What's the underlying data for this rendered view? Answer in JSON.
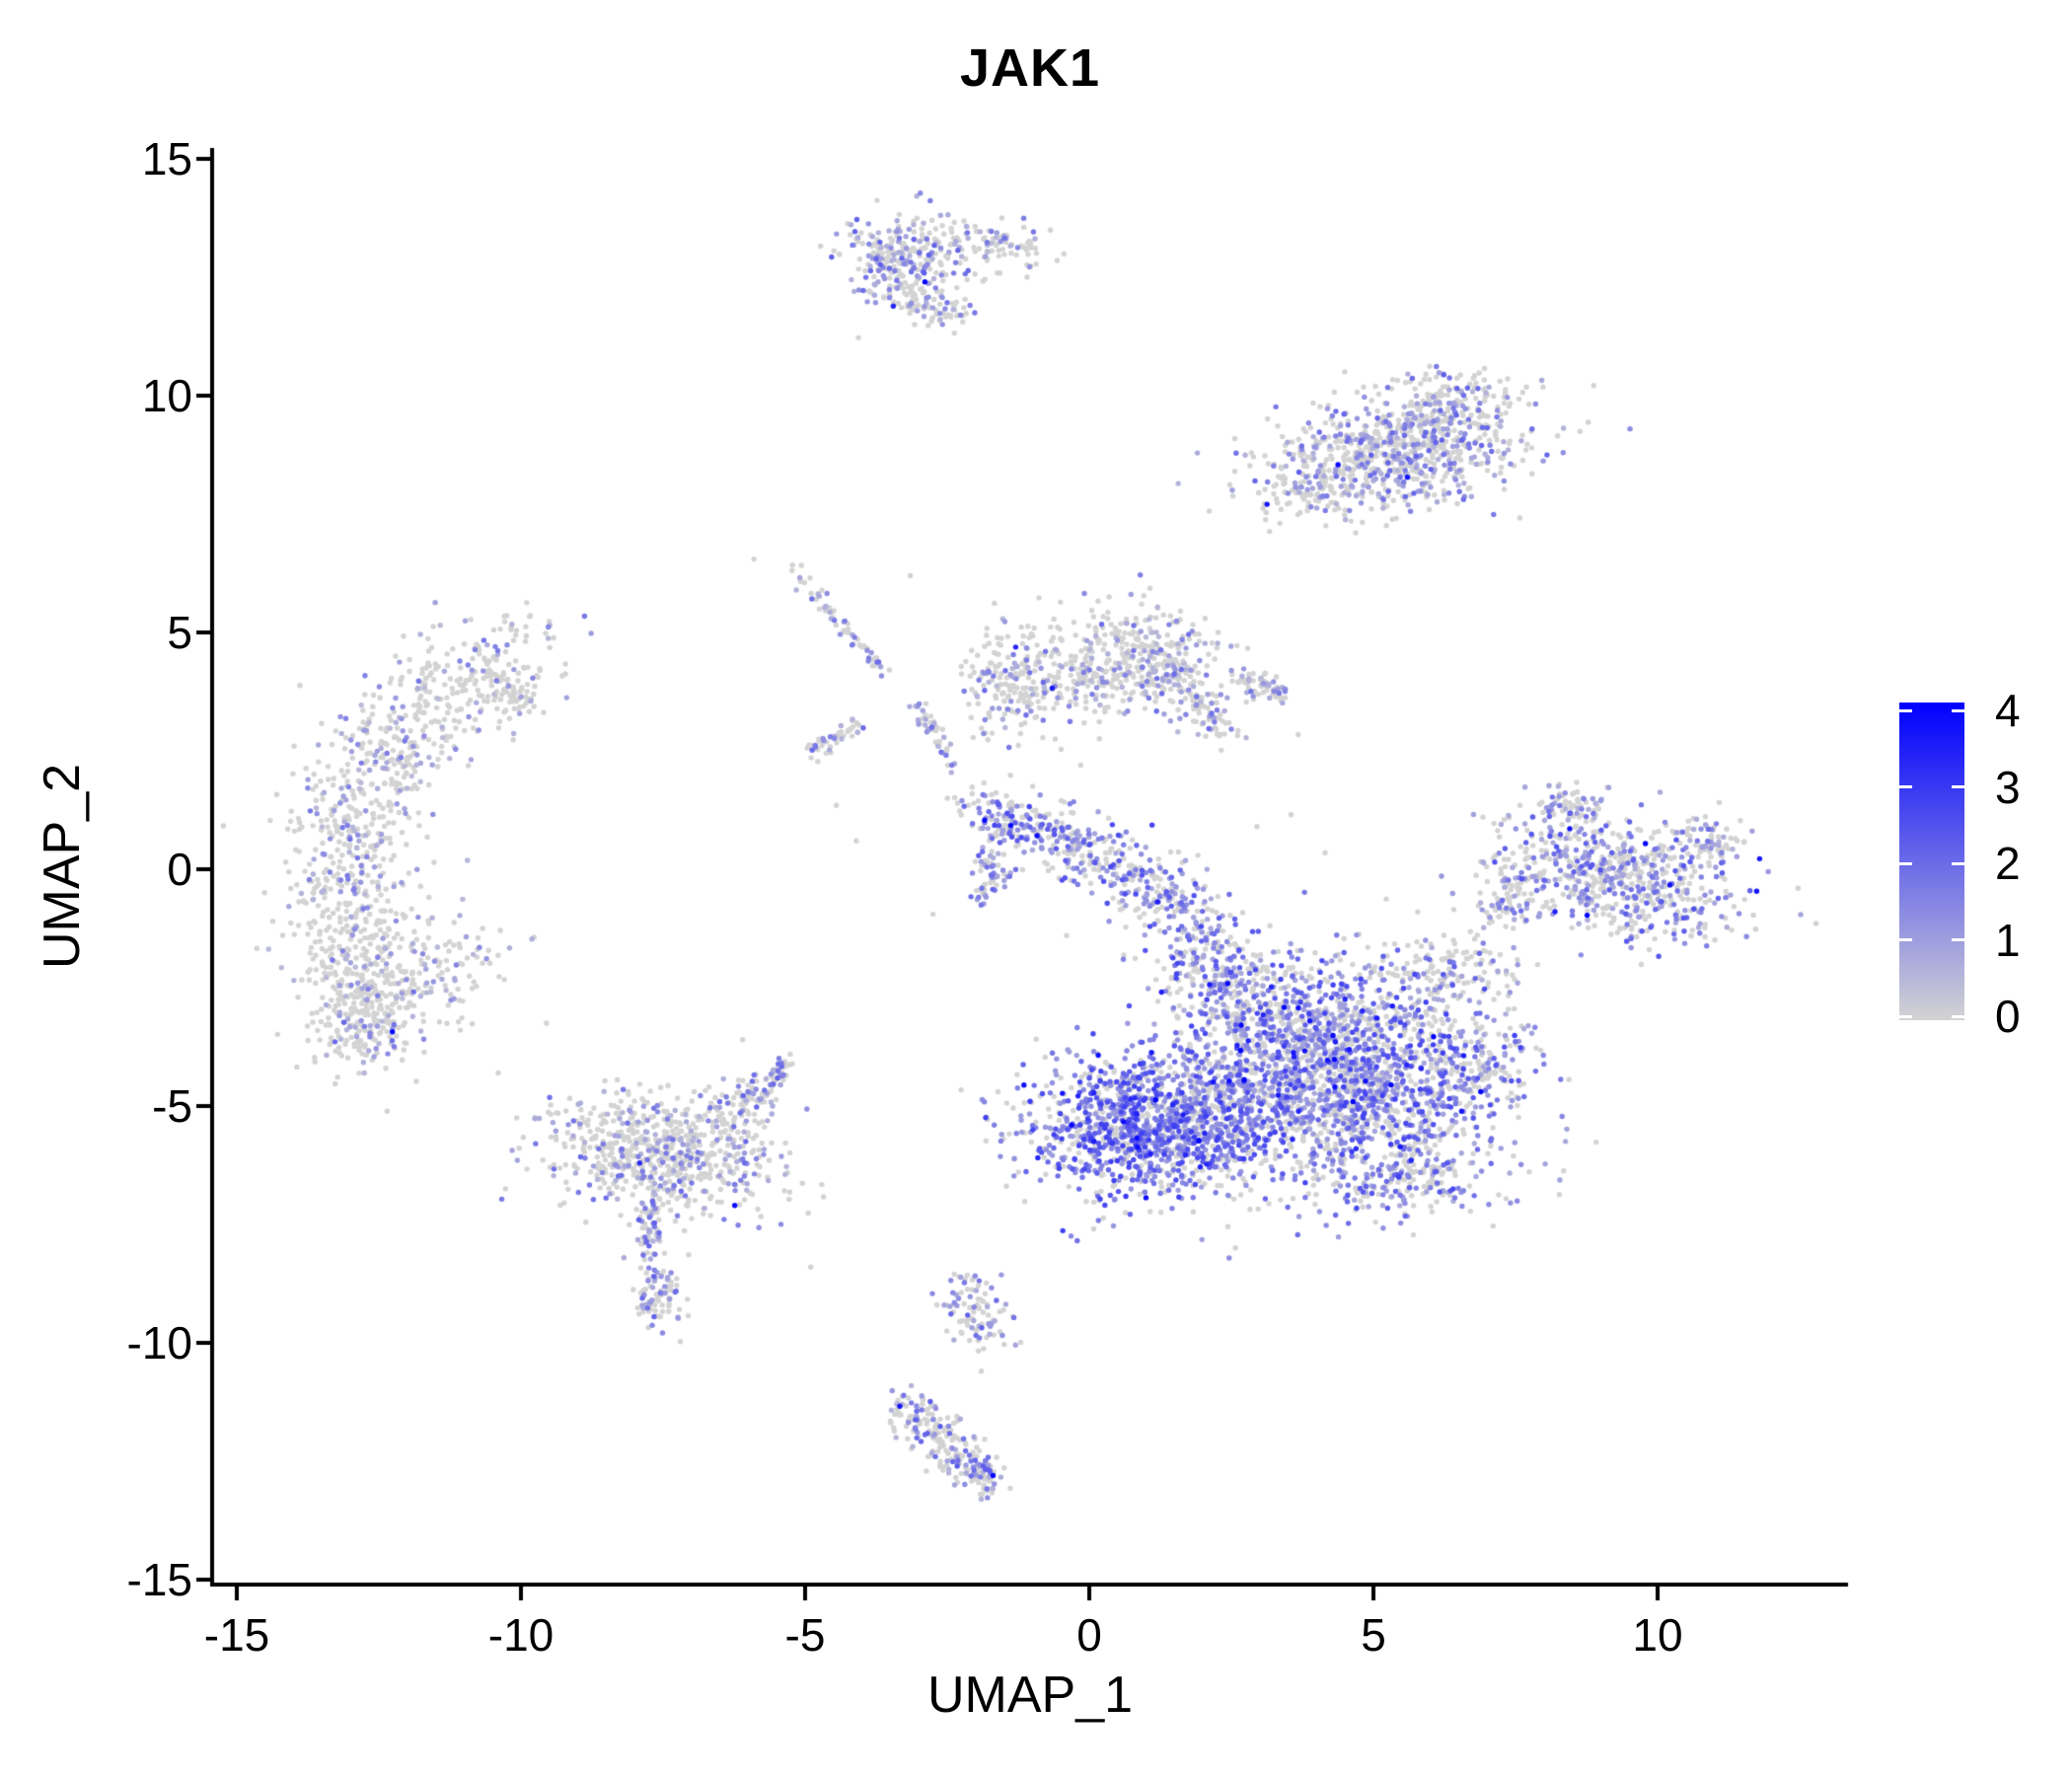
{
  "title": "JAK1",
  "axes": {
    "x": {
      "label": "UMAP_1",
      "ticks": [
        -15,
        -10,
        -5,
        0,
        5,
        10
      ],
      "range": [
        -15.4,
        13.4
      ]
    },
    "y": {
      "label": "UMAP_2",
      "ticks": [
        15,
        10,
        5,
        0,
        -5,
        -10,
        -15
      ],
      "range": [
        -15.2,
        15.2
      ]
    }
  },
  "colorbar": {
    "labels": [
      4,
      3,
      2,
      1,
      0
    ],
    "min_value": 0,
    "max_value": 4,
    "low_color": "#d3d3d3",
    "high_color": "#0000ff"
  },
  "chart_data": {
    "type": "scatter",
    "title": "JAK1",
    "xlabel": "UMAP_1",
    "ylabel": "UMAP_2",
    "xlim": [
      -15.4,
      13.4
    ],
    "ylim": [
      -15.2,
      15.2
    ],
    "grid": false,
    "legend_position": "right",
    "point_radius_px": 2.7,
    "color_scale": {
      "low": "#d3d3d3",
      "high": "#0000ff",
      "domain": [
        0,
        4
      ]
    },
    "seed": 7,
    "clusters": [
      {
        "name": "top-blob",
        "type": "gauss",
        "cx": -3.25,
        "cy": 12.85,
        "sx": 0.6,
        "sy": 0.48,
        "rot": -8,
        "n": 300,
        "expr": {
          "p0": 0.6,
          "t1": 0.15,
          "t2": 0.55,
          "ph": 0.012
        }
      },
      {
        "name": "top-blob-tail",
        "type": "band",
        "path": [
          [
            -2.3,
            13.35
          ],
          [
            -1.5,
            13.2
          ],
          [
            -0.95,
            13.0
          ]
        ],
        "sigma": 0.22,
        "n": 80,
        "expr": {
          "p0": 0.68,
          "t1": 0.12,
          "t2": 0.45,
          "ph": 0
        }
      },
      {
        "name": "top-blob-hook",
        "type": "band",
        "path": [
          [
            -3.2,
            12.0
          ],
          [
            -2.6,
            11.7
          ],
          [
            -2.05,
            11.9
          ]
        ],
        "sigma": 0.16,
        "n": 60,
        "expr": {
          "p0": 0.62,
          "t1": 0.15,
          "t2": 0.5,
          "ph": 0
        }
      },
      {
        "name": "top-right-main",
        "type": "gauss",
        "cx": 5.45,
        "cy": 8.85,
        "sx": 1.2,
        "sy": 0.6,
        "rot": 14,
        "n": 800,
        "expr": {
          "p0": 0.63,
          "t1": 0.15,
          "t2": 0.55,
          "ph": 0.01
        }
      },
      {
        "name": "top-right-crest",
        "type": "gauss",
        "cx": 6.35,
        "cy": 9.9,
        "sx": 0.5,
        "sy": 0.3,
        "rot": 10,
        "n": 90,
        "expr": {
          "p0": 0.63,
          "t1": 0.15,
          "t2": 0.55,
          "ph": 0.01
        }
      },
      {
        "name": "top-right-west-tip",
        "type": "gauss",
        "cx": 3.9,
        "cy": 8.1,
        "sx": 0.35,
        "sy": 0.3,
        "rot": 0,
        "n": 70,
        "expr": {
          "p0": 0.66,
          "t1": 0.15,
          "t2": 0.5,
          "ph": 0
        }
      },
      {
        "name": "left-crescent",
        "type": "band",
        "path": [
          [
            -9.85,
            4.65
          ],
          [
            -10.8,
            4.15
          ],
          [
            -11.85,
            3.3
          ],
          [
            -12.55,
            2.2
          ],
          [
            -12.95,
            1.0
          ],
          [
            -13.1,
            -0.2
          ],
          [
            -13.0,
            -1.5
          ],
          [
            -12.75,
            -2.8
          ],
          [
            -12.4,
            -3.7
          ]
        ],
        "sigma": 0.55,
        "n": 950,
        "expr": {
          "p0": 0.78,
          "t1": 0.12,
          "t2": 0.45,
          "ph": 0.006
        }
      },
      {
        "name": "left-crescent-bottom",
        "type": "gauss",
        "cx": -12.7,
        "cy": -2.9,
        "sx": 0.45,
        "sy": 0.75,
        "rot": 0,
        "n": 140,
        "expr": {
          "p0": 0.74,
          "t1": 0.14,
          "t2": 0.5,
          "ph": 0.008
        }
      },
      {
        "name": "left-crescent-inner",
        "type": "gauss",
        "cx": -11.4,
        "cy": -2.1,
        "sx": 0.6,
        "sy": 0.6,
        "rot": 0,
        "n": 110,
        "expr": {
          "p0": 0.8,
          "t1": 0.12,
          "t2": 0.4,
          "ph": 0
        }
      },
      {
        "name": "left-crescent-finger",
        "type": "band",
        "path": [
          [
            -10.4,
            3.9
          ],
          [
            -9.9,
            3.4
          ]
        ],
        "sigma": 0.2,
        "n": 50,
        "expr": {
          "p0": 0.76,
          "t1": 0.12,
          "t2": 0.45,
          "ph": 0
        }
      },
      {
        "name": "streak-upper-diagonal",
        "type": "band",
        "path": [
          [
            -5.3,
            6.5
          ],
          [
            -4.75,
            5.7
          ],
          [
            -4.1,
            4.8
          ],
          [
            -3.55,
            4.15
          ]
        ],
        "sigma": 0.07,
        "n": 60,
        "expr": {
          "p0": 0.55,
          "t1": 0.15,
          "t2": 0.5,
          "ph": 0
        }
      },
      {
        "name": "streak-lower-diagonal",
        "type": "band",
        "path": [
          [
            -4.95,
            2.45
          ],
          [
            -4.35,
            2.85
          ],
          [
            -3.95,
            3.1
          ]
        ],
        "sigma": 0.09,
        "n": 45,
        "expr": {
          "p0": 0.6,
          "t1": 0.15,
          "t2": 0.5,
          "ph": 0
        }
      },
      {
        "name": "streak-vertical",
        "type": "band",
        "path": [
          [
            -3.05,
            3.5
          ],
          [
            -2.7,
            2.8
          ],
          [
            -2.3,
            1.95
          ]
        ],
        "sigma": 0.09,
        "n": 42,
        "expr": {
          "p0": 0.6,
          "t1": 0.15,
          "t2": 0.5,
          "ph": 0
        }
      },
      {
        "name": "mid-left-lobe",
        "type": "gauss",
        "cx": -1.35,
        "cy": 3.95,
        "sx": 0.45,
        "sy": 0.55,
        "rot": 0,
        "n": 190,
        "expr": {
          "p0": 0.7,
          "t1": 0.12,
          "t2": 0.5,
          "ph": 0.005
        }
      },
      {
        "name": "mid-apex",
        "type": "gauss",
        "cx": 0.85,
        "cy": 4.35,
        "sx": 0.8,
        "sy": 0.6,
        "rot": -12,
        "n": 400,
        "expr": {
          "p0": 0.7,
          "t1": 0.12,
          "t2": 0.5,
          "ph": 0.005
        }
      },
      {
        "name": "mid-bridge",
        "type": "gauss",
        "cx": -0.2,
        "cy": 3.9,
        "sx": 0.3,
        "sy": 0.35,
        "rot": 0,
        "n": 60,
        "expr": {
          "p0": 0.75,
          "t1": 0.12,
          "t2": 0.45,
          "ph": 0
        }
      },
      {
        "name": "mid-down-arm",
        "type": "band",
        "path": [
          [
            1.7,
            3.95
          ],
          [
            2.35,
            2.9
          ]
        ],
        "sigma": 0.18,
        "n": 70,
        "expr": {
          "p0": 0.7,
          "t1": 0.12,
          "t2": 0.5,
          "ph": 0
        }
      },
      {
        "name": "mid-right-streak",
        "type": "band",
        "path": [
          [
            2.55,
            4.1
          ],
          [
            3.05,
            3.9
          ],
          [
            3.4,
            3.6
          ]
        ],
        "sigma": 0.11,
        "n": 55,
        "expr": {
          "p0": 0.72,
          "t1": 0.12,
          "t2": 0.5,
          "ph": 0
        }
      },
      {
        "name": "trail",
        "type": "band",
        "path": [
          [
            -2.05,
            1.35
          ],
          [
            -1.15,
            1.0
          ],
          [
            -0.1,
            0.45
          ],
          [
            0.9,
            -0.1
          ],
          [
            1.6,
            -0.85
          ],
          [
            2.0,
            -1.7
          ],
          [
            2.45,
            -2.55
          ]
        ],
        "sigma": [
          0.26,
          0.5
        ],
        "n": 600,
        "expr": {
          "p0": 0.42,
          "t1": 0.2,
          "t2": 0.68,
          "ph": 0.02
        }
      },
      {
        "name": "trail-spur",
        "type": "band",
        "path": [
          [
            -1.55,
            0.85
          ],
          [
            -1.85,
            0.1
          ],
          [
            -1.5,
            -0.1
          ],
          [
            -1.95,
            -0.6
          ]
        ],
        "sigma": 0.1,
        "n": 70,
        "expr": {
          "p0": 0.5,
          "t1": 0.18,
          "t2": 0.6,
          "ph": 0.01
        }
      },
      {
        "name": "central-left-lobe",
        "type": "gauss",
        "cx": 1.15,
        "cy": -5.4,
        "sx": 1.1,
        "sy": 0.75,
        "rot": 4,
        "n": 1350,
        "expr": {
          "p0": 0.33,
          "t1": 0.25,
          "t2": 0.72,
          "ph": 0.03
        }
      },
      {
        "name": "central-right-lobe",
        "type": "gauss",
        "cx": 4.55,
        "cy": -4.4,
        "sx": 1.3,
        "sy": 1.1,
        "rot": 0,
        "n": 1750,
        "expr": {
          "p0": 0.44,
          "t1": 0.2,
          "t2": 0.7,
          "ph": 0.025
        }
      },
      {
        "name": "central-bridge",
        "type": "gauss",
        "cx": 3.0,
        "cy": -3.0,
        "sx": 0.8,
        "sy": 0.65,
        "rot": -20,
        "n": 330,
        "expr": {
          "p0": 0.5,
          "t1": 0.18,
          "t2": 0.6,
          "ph": 0.015
        }
      },
      {
        "name": "central-upper-fringe",
        "type": "gauss",
        "cx": 6.3,
        "cy": -2.1,
        "sx": 0.65,
        "sy": 0.5,
        "rot": 0,
        "n": 140,
        "expr": {
          "p0": 0.68,
          "t1": 0.15,
          "t2": 0.55,
          "ph": 0
        }
      },
      {
        "name": "central-lower-fringe",
        "type": "gauss",
        "cx": 5.5,
        "cy": -6.4,
        "sx": 0.9,
        "sy": 0.42,
        "rot": 0,
        "n": 220,
        "expr": {
          "p0": 0.55,
          "t1": 0.18,
          "t2": 0.6,
          "ph": 0.01
        }
      },
      {
        "name": "central-right-tip",
        "type": "gauss",
        "cx": 6.9,
        "cy": -4.2,
        "sx": 0.5,
        "sy": 0.5,
        "rot": 0,
        "n": 120,
        "expr": {
          "p0": 0.5,
          "t1": 0.18,
          "t2": 0.6,
          "ph": 0.01
        }
      },
      {
        "name": "right-main",
        "type": "gauss",
        "cx": 9.3,
        "cy": -0.2,
        "sx": 1.1,
        "sy": 0.62,
        "rot": -16,
        "n": 650,
        "expr": {
          "p0": 0.55,
          "t1": 0.18,
          "t2": 0.62,
          "ph": 0.02
        }
      },
      {
        "name": "right-satellite",
        "type": "gauss",
        "cx": 8.5,
        "cy": 1.3,
        "sx": 0.3,
        "sy": 0.17,
        "rot": -20,
        "n": 55,
        "expr": {
          "p0": 0.6,
          "t1": 0.15,
          "t2": 0.5,
          "ph": 0
        }
      },
      {
        "name": "right-left-link",
        "type": "band",
        "path": [
          [
            7.0,
            -0.85
          ],
          [
            7.75,
            -0.45
          ]
        ],
        "sigma": 0.28,
        "n": 60,
        "expr": {
          "p0": 0.7,
          "t1": 0.15,
          "t2": 0.5,
          "ph": 0
        }
      },
      {
        "name": "right-east-tip",
        "type": "gauss",
        "cx": 10.9,
        "cy": 0.55,
        "sx": 0.35,
        "sy": 0.25,
        "rot": 25,
        "n": 70,
        "expr": {
          "p0": 0.6,
          "t1": 0.15,
          "t2": 0.55,
          "ph": 0.01
        }
      },
      {
        "name": "lower-left-main",
        "type": "gauss",
        "cx": -7.5,
        "cy": -5.95,
        "sx": 1.0,
        "sy": 0.62,
        "rot": -8,
        "n": 680,
        "expr": {
          "p0": 0.72,
          "t1": 0.14,
          "t2": 0.5,
          "ph": 0.008
        }
      },
      {
        "name": "lower-left-tip",
        "type": "band",
        "path": [
          [
            -6.3,
            -5.2
          ],
          [
            -5.7,
            -4.65
          ],
          [
            -5.3,
            -4.1
          ]
        ],
        "sigma": [
          0.3,
          0.1
        ],
        "n": 110,
        "expr": {
          "p0": 0.6,
          "t1": 0.15,
          "t2": 0.55,
          "ph": 0.01
        }
      },
      {
        "name": "lower-left-drip",
        "type": "band",
        "path": [
          [
            -7.75,
            -7.0
          ],
          [
            -7.7,
            -8.0
          ]
        ],
        "sigma": 0.14,
        "n": 55,
        "expr": {
          "p0": 0.62,
          "t1": 0.15,
          "t2": 0.55,
          "ph": 0
        }
      },
      {
        "name": "lower-left-drop",
        "type": "gauss",
        "cx": -7.6,
        "cy": -8.9,
        "sx": 0.22,
        "sy": 0.4,
        "rot": 0,
        "n": 95,
        "expr": {
          "p0": 0.6,
          "t1": 0.18,
          "t2": 0.55,
          "ph": 0.01
        }
      },
      {
        "name": "bottom-small",
        "type": "gauss",
        "cx": -2.05,
        "cy": -9.25,
        "sx": 0.3,
        "sy": 0.45,
        "rot": 15,
        "n": 95,
        "expr": {
          "p0": 0.58,
          "t1": 0.18,
          "t2": 0.55,
          "ph": 0.01
        }
      },
      {
        "name": "bottom-diagonal",
        "type": "band",
        "path": [
          [
            -3.35,
            -11.35
          ],
          [
            -2.85,
            -11.75
          ],
          [
            -2.35,
            -12.3
          ],
          [
            -1.85,
            -12.85
          ],
          [
            -1.65,
            -13.05
          ]
        ],
        "sigma": 0.24,
        "n": 230,
        "expr": {
          "p0": 0.65,
          "t1": 0.15,
          "t2": 0.58,
          "ph": 0.012
        }
      },
      {
        "name": "stray-dots",
        "type": "dots",
        "points": [
          [
            -1.9,
            -10.6
          ],
          [
            -5.9,
            6.55
          ],
          [
            -3.15,
            6.2
          ],
          [
            0.35,
            5.75
          ],
          [
            -0.6,
            2.75
          ],
          [
            -0.15,
            2.2
          ],
          [
            -6.1,
            -3.6
          ],
          [
            -4.45,
            1.35
          ],
          [
            -4.1,
            0.6
          ],
          [
            -2.75,
            -0.95
          ],
          [
            3.55,
            1.15
          ],
          [
            4.15,
            0.35
          ],
          [
            2.95,
            0.9
          ],
          [
            7.3,
            1.05
          ],
          [
            -0.4,
            -1.4
          ],
          [
            0.6,
            -1.9
          ],
          [
            -9.55,
            -3.25
          ],
          [
            -4.9,
            -8.4
          ],
          [
            -10.4,
            -4.3
          ]
        ],
        "expr": {
          "p0": 0.85,
          "t1": 0.15,
          "t2": 0.4,
          "ph": 0
        }
      }
    ]
  }
}
